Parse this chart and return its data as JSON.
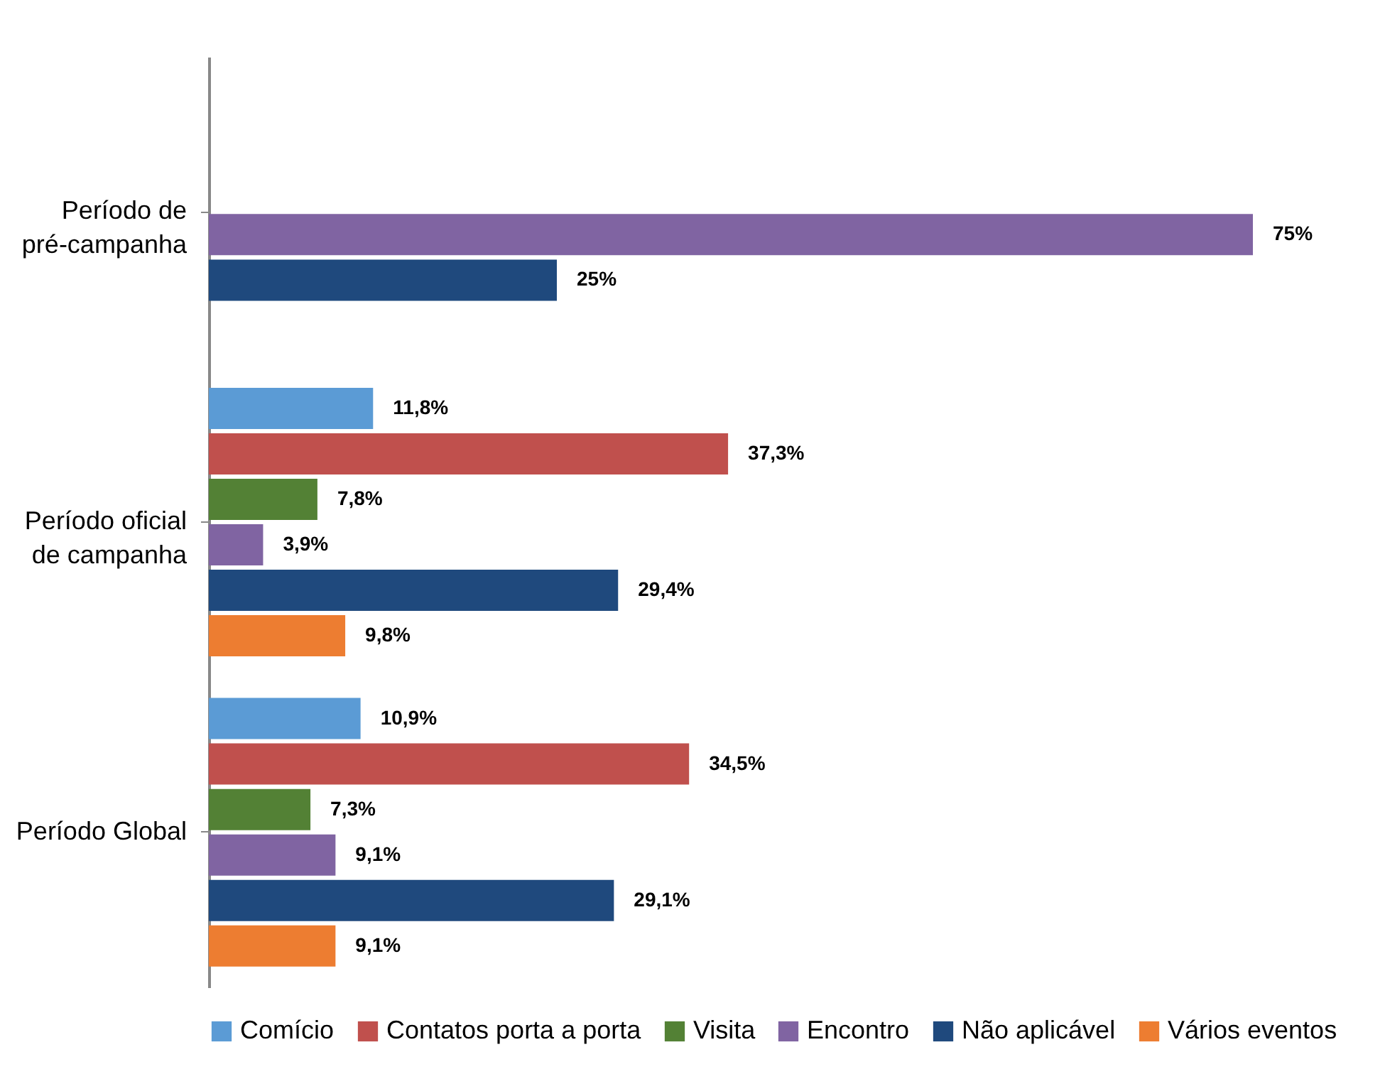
{
  "chart_data": {
    "type": "bar",
    "orientation": "horizontal",
    "categories": [
      "Período de pré-campanha",
      "Período oficial de campanha",
      "Período Global"
    ],
    "series": [
      {
        "name": "Comício",
        "color": "#5b9bd5",
        "values": [
          null,
          11.8,
          10.9
        ],
        "value_labels": [
          null,
          "11,8%",
          "10,9%"
        ]
      },
      {
        "name": "Contatos porta a porta",
        "color": "#c0504d",
        "values": [
          null,
          37.3,
          34.5
        ],
        "value_labels": [
          null,
          "37,3%",
          "34,5%"
        ]
      },
      {
        "name": "Visita",
        "color": "#538135",
        "values": [
          null,
          7.8,
          7.3
        ],
        "value_labels": [
          null,
          "7,8%",
          "7,3%"
        ]
      },
      {
        "name": "Encontro",
        "color": "#8064a2",
        "values": [
          75,
          3.9,
          9.1
        ],
        "value_labels": [
          "75%",
          "3,9%",
          "9,1%"
        ]
      },
      {
        "name": "Não aplicável",
        "color": "#1f497d",
        "values": [
          25,
          29.4,
          29.1
        ],
        "value_labels": [
          "25%",
          "29,4%",
          "29,1%"
        ]
      },
      {
        "name": "Vários eventos",
        "color": "#ed7d31",
        "values": [
          null,
          9.8,
          9.1
        ],
        "value_labels": [
          null,
          "9,8%",
          "9,1%"
        ]
      }
    ],
    "legend": "bottom"
  }
}
